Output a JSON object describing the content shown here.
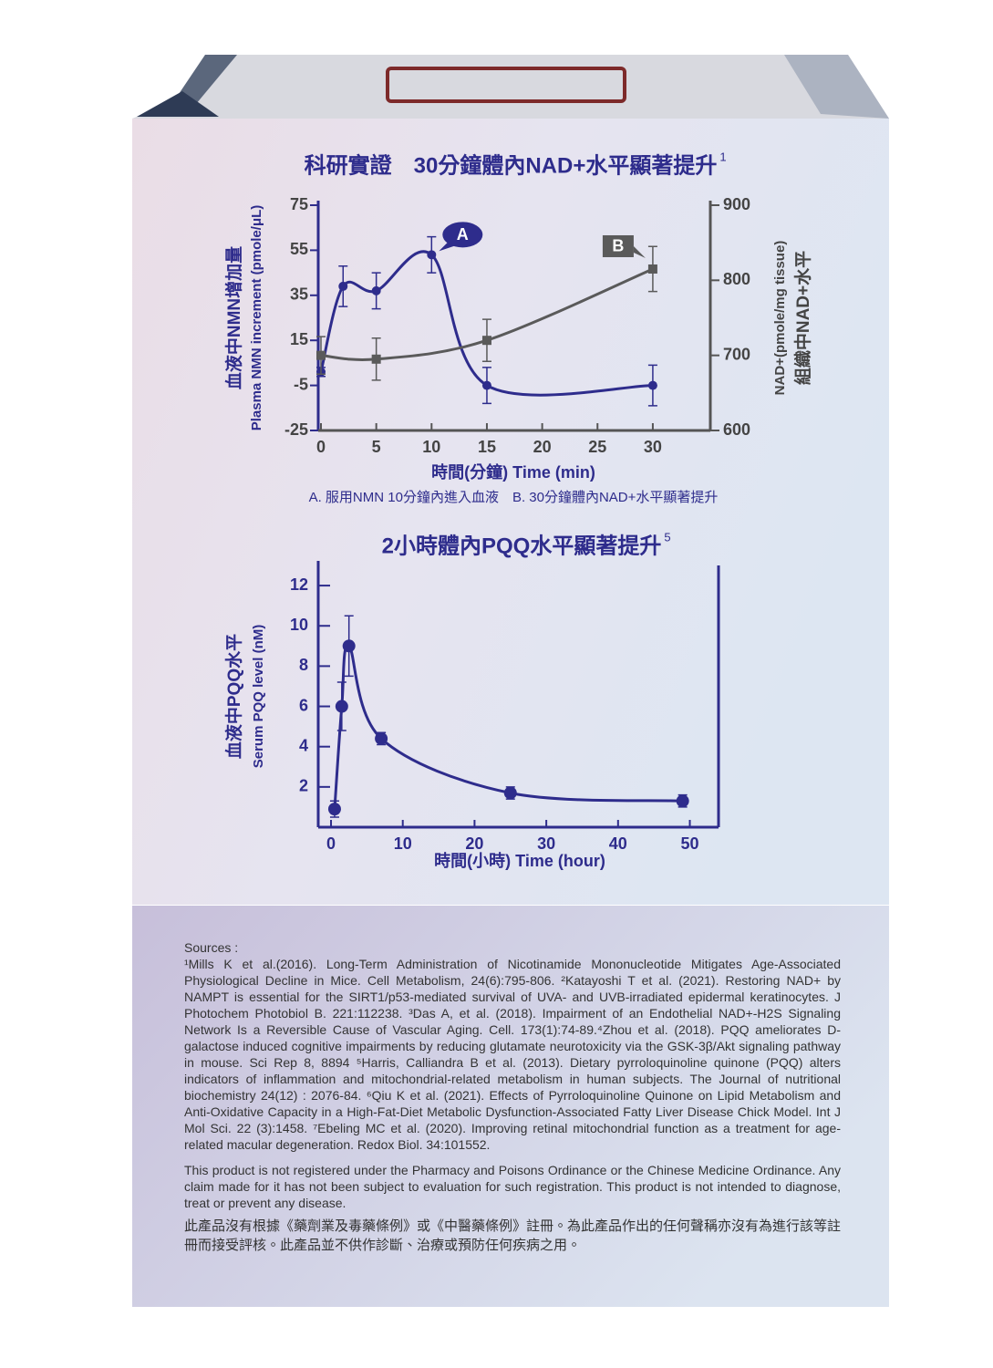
{
  "chart_data": [
    {
      "type": "line",
      "title": "科研實證　30分鐘體內NAD+水平顯著提升",
      "title_note": "1",
      "ylabel": "血液中NMN增加量",
      "ylabel_en": "Plasma NMN increment (pmole/μL)",
      "y2label": "組織中NAD+水平",
      "y2label_en": "NAD+(pmole/mg tissue)",
      "xlabel": "時間(分鐘) Time (min)",
      "caption": "A. 服用NMN 10分鐘內進入血液　B. 30分鐘體內NAD+水平顯著提升",
      "xlim": [
        0,
        35.2
      ],
      "xticks": [
        0,
        5,
        10,
        15,
        20,
        25,
        30
      ],
      "ylim": [
        -25,
        75
      ],
      "yticks": [
        -25,
        -5,
        15,
        35,
        55,
        75
      ],
      "y2lim": [
        600,
        900
      ],
      "y2ticks": [
        600,
        700,
        800,
        900
      ],
      "series": [
        {
          "name": "A",
          "color": "#2e2c8c",
          "x": [
            0,
            2,
            5,
            10,
            15,
            30
          ],
          "values": [
            1,
            39,
            37,
            53,
            -5,
            -5
          ],
          "errors": [
            2,
            9,
            8,
            8,
            8,
            9
          ]
        },
        {
          "name": "B",
          "color": "#5a5a5a",
          "axis": "y2",
          "x": [
            0,
            5,
            15,
            30
          ],
          "values": [
            700,
            695,
            720,
            815
          ],
          "errors": [
            25,
            28,
            28,
            30
          ]
        }
      ]
    },
    {
      "type": "line",
      "title": "2小時體內PQQ水平顯著提升",
      "title_note": "5",
      "ylabel": "血液中PQQ水平",
      "ylabel_en": "Serum PQQ level (nM)",
      "xlabel": "時間(小時) Time (hour)",
      "xlim": [
        -1.4,
        54
      ],
      "xticks": [
        0,
        10,
        20,
        30,
        40,
        50
      ],
      "ylim": [
        0,
        13
      ],
      "yticks": [
        2,
        4,
        6,
        8,
        10,
        12
      ],
      "series": [
        {
          "color": "#2e2c8c",
          "x": [
            0.5,
            1.5,
            2.5,
            7,
            25,
            49
          ],
          "values": [
            0.9,
            6,
            9,
            4.4,
            1.7,
            1.3
          ],
          "errors": [
            0.4,
            1.2,
            1.5,
            0.3,
            0.3,
            0.3
          ]
        }
      ]
    }
  ],
  "sources": {
    "heading": "Sources :",
    "text": "¹Mills K et al.(2016). Long-Term Administration of Nicotinamide Mononucleotide Mitigates Age-Associated Physiological Decline in Mice. Cell Metabolism, 24(6):795-806. ²Katayoshi T et al. (2021). Restoring NAD+ by NAMPT is essential for the SIRT1/p53-mediated survival of UVA- and UVB-irradiated epidermal keratinocytes. J Photochem Photobiol B. 221:112238. ³Das A, et al. (2018). Impairment of an Endothelial NAD+-H2S Signaling Network Is a Reversible Cause of Vascular Aging. Cell. 173(1):74-89.⁴Zhou et al. (2018). PQQ ameliorates D-galactose induced cognitive impairments by reducing glutamate neurotoxicity via the GSK-3β/Akt signaling pathway in mouse. Sci Rep 8, 8894 ⁵Harris, Calliandra B et al. (2013). Dietary pyrroloquinoline quinone (PQQ) alters indicators of inflammation and mitochondrial-related metabolism in human subjects. The Journal of nutritional biochemistry 24(12) : 2076-84. ⁶Qiu K et al. (2021). Effects of Pyrroloquinoline Quinone on Lipid Metabolism and Anti-Oxidative Capacity in a High-Fat-Diet Metabolic Dysfunction-Associated Fatty Liver Disease Chick Model. Int J Mol Sci. 22 (3):1458. ⁷Ebeling MC et al. (2020). Improving retinal mitochondrial function as a treatment for age-related macular degeneration. Redox Biol. 34:101552."
  },
  "disclaimer_en": "This product is not registered under the Pharmacy and Poisons Ordinance or the Chinese Medicine Ordinance. Any claim made for it has not been subject to evaluation for such registration. This product is not intended to diagnose, treat or prevent any disease.",
  "disclaimer_zh": "此產品沒有根據《藥劑業及毒藥條例》或《中醫藥條例》註冊。為此產品作出的任何聲稱亦沒有為進行該等註冊而接受評核。此產品並不供作診斷、治療或預防任何疾病之用。"
}
